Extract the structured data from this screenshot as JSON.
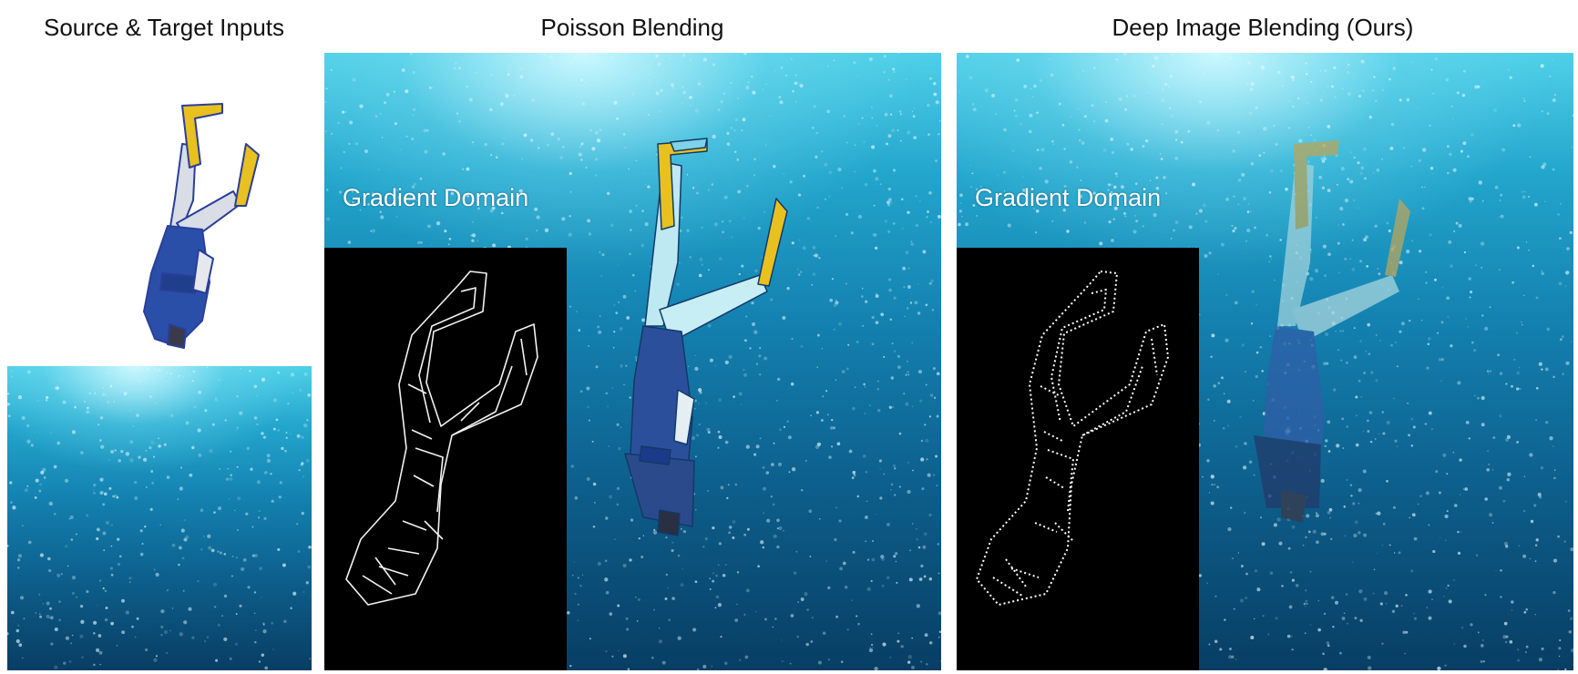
{
  "panels": [
    {
      "title": "Source & Target Inputs"
    },
    {
      "title": "Poisson Blending",
      "inset_label": "Gradient Domain"
    },
    {
      "title": "Deep Image Blending (Ours)",
      "inset_label": "Gradient Domain"
    }
  ],
  "colors": {
    "water_light": "#4fd0e8",
    "water_mid": "#137fae",
    "water_dark": "#083e64",
    "wetsuit": "#2a4fa8",
    "fin_yellow": "#e8c020",
    "edge_map_background": "#000000",
    "edge_lines": "#ffffff"
  },
  "icons": [
    "diver-figure",
    "fins",
    "bubbles",
    "light-rays",
    "edge-map-outline"
  ]
}
